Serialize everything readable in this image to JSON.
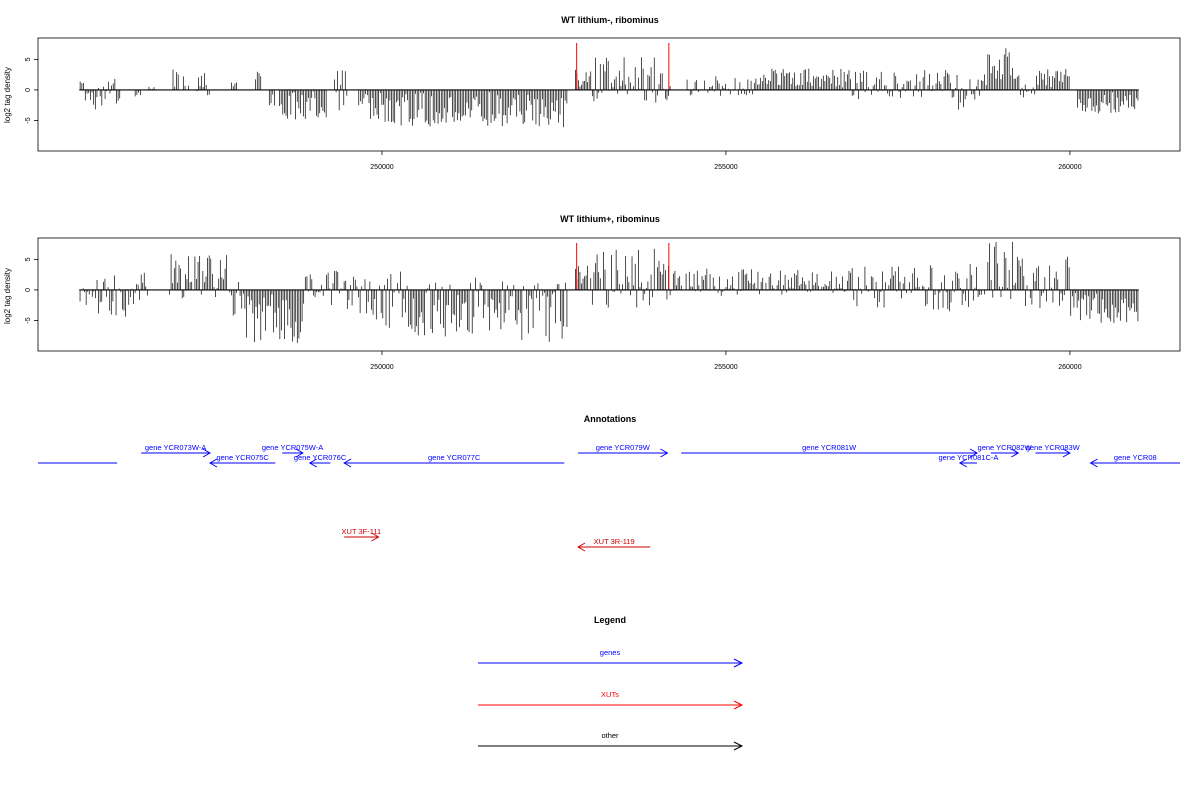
{
  "chart_data": [
    {
      "type": "bar",
      "title": "WT lithium-, ribominus",
      "ylabel": "log2 tag density",
      "xlabel": "",
      "xlim": [
        245000,
        261600
      ],
      "ylim": [
        -10,
        8.5
      ],
      "xticks": [
        250000,
        255000,
        260000
      ],
      "xtick_labels": [
        "250000",
        "255000",
        "260000"
      ],
      "yticks": [
        -5,
        0,
        5
      ],
      "ytick_labels": [
        "-5",
        "0",
        "5"
      ],
      "grid": false,
      "markers": [
        252830,
        254170
      ],
      "segments": [
        {
          "start": 245600,
          "end": 245750,
          "min": -2.5,
          "max": 1.5
        },
        {
          "start": 245750,
          "end": 246200,
          "min": -3.5,
          "max": 2.0
        },
        {
          "start": 246400,
          "end": 246500,
          "min": -1.5,
          "max": 0.0
        },
        {
          "start": 246600,
          "end": 246700,
          "min": 0.0,
          "max": 0.5
        },
        {
          "start": 246950,
          "end": 247050,
          "min": 0.0,
          "max": 4.0
        },
        {
          "start": 247100,
          "end": 247200,
          "min": -1.0,
          "max": 2.5
        },
        {
          "start": 247300,
          "end": 247500,
          "min": -1.0,
          "max": 3.0
        },
        {
          "start": 247800,
          "end": 247900,
          "min": 0.0,
          "max": 1.5
        },
        {
          "start": 248150,
          "end": 248250,
          "min": 0.0,
          "max": 3.0
        },
        {
          "start": 248350,
          "end": 248450,
          "min": -4.5,
          "max": 0.5
        },
        {
          "start": 248500,
          "end": 249200,
          "min": -5.0,
          "max": 0.0
        },
        {
          "start": 249300,
          "end": 249500,
          "min": -3.5,
          "max": 3.5
        },
        {
          "start": 249650,
          "end": 249800,
          "min": -4.5,
          "max": 0.0
        },
        {
          "start": 249800,
          "end": 251200,
          "min": -6.0,
          "max": 0.0
        },
        {
          "start": 251200,
          "end": 252600,
          "min": -6.0,
          "max": 0.0
        },
        {
          "start": 252600,
          "end": 252700,
          "min": -7.0,
          "max": 0.0
        },
        {
          "start": 252800,
          "end": 253000,
          "min": 0.0,
          "max": 3.5
        },
        {
          "start": 253000,
          "end": 254200,
          "min": -2.5,
          "max": 5.5
        },
        {
          "start": 254400,
          "end": 255400,
          "min": -1.0,
          "max": 2.5
        },
        {
          "start": 255400,
          "end": 256800,
          "min": 0.0,
          "max": 3.5
        },
        {
          "start": 256800,
          "end": 258300,
          "min": -1.5,
          "max": 3.5
        },
        {
          "start": 258300,
          "end": 258700,
          "min": -3.5,
          "max": 2.5
        },
        {
          "start": 258700,
          "end": 259200,
          "min": 0.0,
          "max": 7.0
        },
        {
          "start": 259200,
          "end": 259500,
          "min": -2.5,
          "max": 2.5
        },
        {
          "start": 259500,
          "end": 260000,
          "min": 0.0,
          "max": 3.5
        },
        {
          "start": 260100,
          "end": 261000,
          "min": -4.0,
          "max": 0.0
        }
      ]
    },
    {
      "type": "bar",
      "title": "WT lithium+, ribominus",
      "ylabel": "log2 tag density",
      "xlabel": "",
      "xlim": [
        245000,
        261600
      ],
      "ylim": [
        -10,
        8.5
      ],
      "xticks": [
        250000,
        255000,
        260000
      ],
      "xtick_labels": [
        "250000",
        "255000",
        "260000"
      ],
      "yticks": [
        -5,
        0,
        5
      ],
      "ytick_labels": [
        "-5",
        "0",
        "5"
      ],
      "grid": false,
      "markers": [
        252830,
        254170
      ],
      "segments": [
        {
          "start": 245600,
          "end": 245800,
          "min": -2.5,
          "max": 2.0
        },
        {
          "start": 245800,
          "end": 246400,
          "min": -5.0,
          "max": 2.5
        },
        {
          "start": 246400,
          "end": 246600,
          "min": -2.0,
          "max": 3.0
        },
        {
          "start": 246900,
          "end": 247800,
          "min": -1.5,
          "max": 6.0
        },
        {
          "start": 247800,
          "end": 247950,
          "min": -6.5,
          "max": 4.5
        },
        {
          "start": 247950,
          "end": 248850,
          "min": -9.0,
          "max": 0.0
        },
        {
          "start": 248850,
          "end": 249300,
          "min": -2.5,
          "max": 3.5
        },
        {
          "start": 249300,
          "end": 249600,
          "min": -4.0,
          "max": 5.0
        },
        {
          "start": 249600,
          "end": 250400,
          "min": -7.0,
          "max": 3.0
        },
        {
          "start": 250400,
          "end": 251600,
          "min": -8.0,
          "max": 2.0
        },
        {
          "start": 251600,
          "end": 252700,
          "min": -8.5,
          "max": 1.5
        },
        {
          "start": 252800,
          "end": 253000,
          "min": 0.0,
          "max": 4.5
        },
        {
          "start": 253000,
          "end": 254200,
          "min": -3.0,
          "max": 7.0
        },
        {
          "start": 254200,
          "end": 255500,
          "min": -1.0,
          "max": 3.5
        },
        {
          "start": 255500,
          "end": 256800,
          "min": -1.0,
          "max": 3.5
        },
        {
          "start": 256800,
          "end": 258700,
          "min": -3.5,
          "max": 4.5
        },
        {
          "start": 258700,
          "end": 259200,
          "min": -1.5,
          "max": 8.0
        },
        {
          "start": 259200,
          "end": 260000,
          "min": -3.0,
          "max": 5.5
        },
        {
          "start": 260000,
          "end": 261000,
          "min": -5.5,
          "max": 0.0
        }
      ]
    }
  ],
  "annotations": {
    "title": "Annotations",
    "xlim": [
      245000,
      261600
    ],
    "genes": [
      {
        "label": "",
        "start": 245000,
        "end": 246150,
        "dir": "none",
        "row": 2
      },
      {
        "label": "gene YCR073W-A",
        "start": 246500,
        "end": 247500,
        "dir": "right",
        "row": 1
      },
      {
        "label": "gene YCR075C",
        "start": 247500,
        "end": 248450,
        "dir": "left",
        "row": 2
      },
      {
        "label": "gene YCR075W-A",
        "start": 248550,
        "end": 248850,
        "dir": "right",
        "row": 1
      },
      {
        "label": "gene YCR076C",
        "start": 248950,
        "end": 249250,
        "dir": "left",
        "row": 2
      },
      {
        "label": "gene YCR077C",
        "start": 249450,
        "end": 252650,
        "dir": "left",
        "row": 2
      },
      {
        "label": "gene YCR079W",
        "start": 252850,
        "end": 254150,
        "dir": "right",
        "row": 1
      },
      {
        "label": "gene YCR081W",
        "start": 254350,
        "end": 258650,
        "dir": "right",
        "row": 1
      },
      {
        "label": "gene YCR081C-A",
        "start": 258400,
        "end": 258650,
        "dir": "left",
        "row": 2
      },
      {
        "label": "gene YCR082W",
        "start": 258850,
        "end": 259250,
        "dir": "right",
        "row": 1
      },
      {
        "label": "gene YCR083W",
        "start": 259500,
        "end": 260000,
        "dir": "right",
        "row": 1
      },
      {
        "label": "gene YCR08",
        "start": 260300,
        "end": 261600,
        "dir": "left",
        "row": 2
      }
    ],
    "xuts": [
      {
        "label": "XUT 3F-111",
        "start": 249450,
        "end": 249950,
        "dir": "right",
        "row": 3
      },
      {
        "label": "XUT 3R-119",
        "start": 252850,
        "end": 253900,
        "dir": "left",
        "row": 4
      }
    ]
  },
  "legend": {
    "title": "Legend",
    "entries": [
      {
        "label": "genes",
        "color": "#0000ff"
      },
      {
        "label": "XUTs",
        "color": "#ff0000"
      },
      {
        "label": "other",
        "color": "#000000"
      }
    ]
  },
  "colors": {
    "bars": "#000000",
    "markers": "#ff0000",
    "genes": "#0000ff",
    "xuts": "#cc0000",
    "frame": "#000000"
  }
}
